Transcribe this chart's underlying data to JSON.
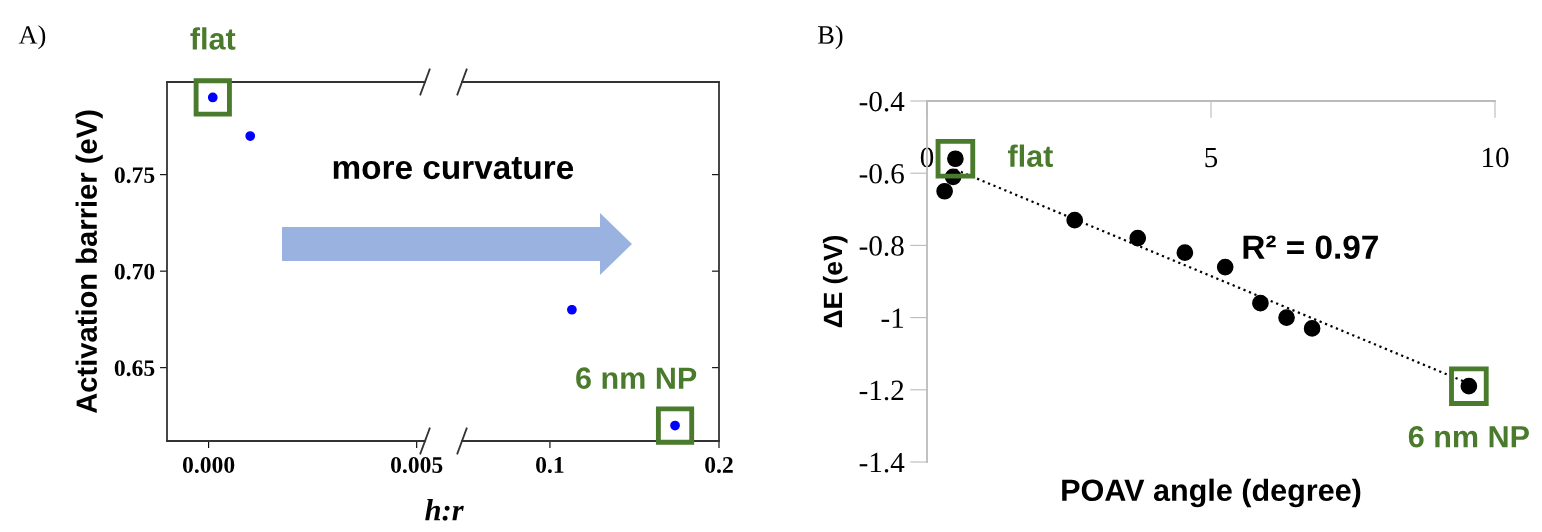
{
  "chart_data": [
    {
      "type": "scatter",
      "ylabel": "Activation barrier (eV)",
      "xlabel": "h:r",
      "xlim": [
        -0.001,
        0.0052
      ],
      "xticks": [
        {
          "value": 0.0,
          "label": "0.000"
        },
        {
          "value": 0.005,
          "label": "0.005"
        }
      ],
      "ylim": [
        0.612,
        0.798
      ],
      "yticks": [
        {
          "value": 0.65,
          "label": "0.65"
        },
        {
          "value": 0.7,
          "label": "0.70"
        },
        {
          "value": 0.75,
          "label": "0.75"
        }
      ],
      "marker": "circle",
      "grid": false,
      "series": [
        {
          "color": "#0000ff",
          "x": [
            0.0001,
            0.001
          ],
          "values": [
            0.79,
            0.77
          ]
        }
      ],
      "annotations": [
        "A)",
        "more curvature",
        {
          "text": "flat",
          "x": 0.0001,
          "y": 0.79
        }
      ]
    },
    {
      "type": "scatter",
      "xlim": [
        0.048,
        0.2
      ],
      "xticks": [
        {
          "value": 0.1,
          "label": "0.1"
        },
        {
          "value": 0.2,
          "label": "0.2"
        }
      ],
      "ylim": [
        0.612,
        0.798
      ],
      "yticks": [
        {
          "value": 0.65,
          "label": null
        },
        {
          "value": 0.7,
          "label": null
        },
        {
          "value": 0.75,
          "label": null
        }
      ],
      "tick_labels": "x",
      "marker": "circle",
      "grid": false,
      "series": [
        {
          "color": "#0000ff",
          "x": [
            0.113,
            0.174
          ],
          "values": [
            0.68,
            0.62
          ]
        }
      ],
      "annotations": [
        {
          "text": "6 nm NP",
          "x": 0.174,
          "y": 0.62
        }
      ]
    },
    {
      "type": "scatter",
      "xlabel": "POAV angle (degree)",
      "ylabel": "ΔE (eV)",
      "xlim": [
        0,
        10
      ],
      "xticks": [
        0,
        5,
        10
      ],
      "ylim": [
        -1.4,
        -0.4
      ],
      "yticks": [
        {
          "value": -1.4,
          "label": "-1.4"
        },
        {
          "value": -1.2,
          "label": "-1.2"
        },
        {
          "value": -1.0,
          "label": "-1"
        },
        {
          "value": -0.8,
          "label": "-0.8"
        },
        {
          "value": -0.6,
          "label": "-0.6"
        },
        {
          "value": -0.4,
          "label": "-0.4"
        }
      ],
      "marker": "circle",
      "grid": false,
      "series": [
        {
          "color": "#000000",
          "x": [
            0.31,
            0.46,
            0.5,
            2.6,
            3.71,
            4.54,
            5.25,
            5.87,
            6.33,
            6.78,
            9.54
          ],
          "values": [
            -0.65,
            -0.61,
            -0.56,
            -0.73,
            -0.78,
            -0.82,
            -0.86,
            -0.96,
            -1.0,
            -1.03,
            -1.19
          ]
        },
        {
          "type": "line",
          "color": "#000000",
          "line_style": "dotted",
          "marker": "none",
          "x": [
            0.5,
            9.5
          ],
          "values": [
            -0.59,
            -1.18
          ]
        }
      ],
      "annotations": [
        "B)",
        "R² = 0.97",
        {
          "text": "flat",
          "x": 0.5,
          "y": -0.56
        },
        {
          "text": "6 nm NP",
          "x": 9.54,
          "y": -1.19
        }
      ]
    }
  ]
}
